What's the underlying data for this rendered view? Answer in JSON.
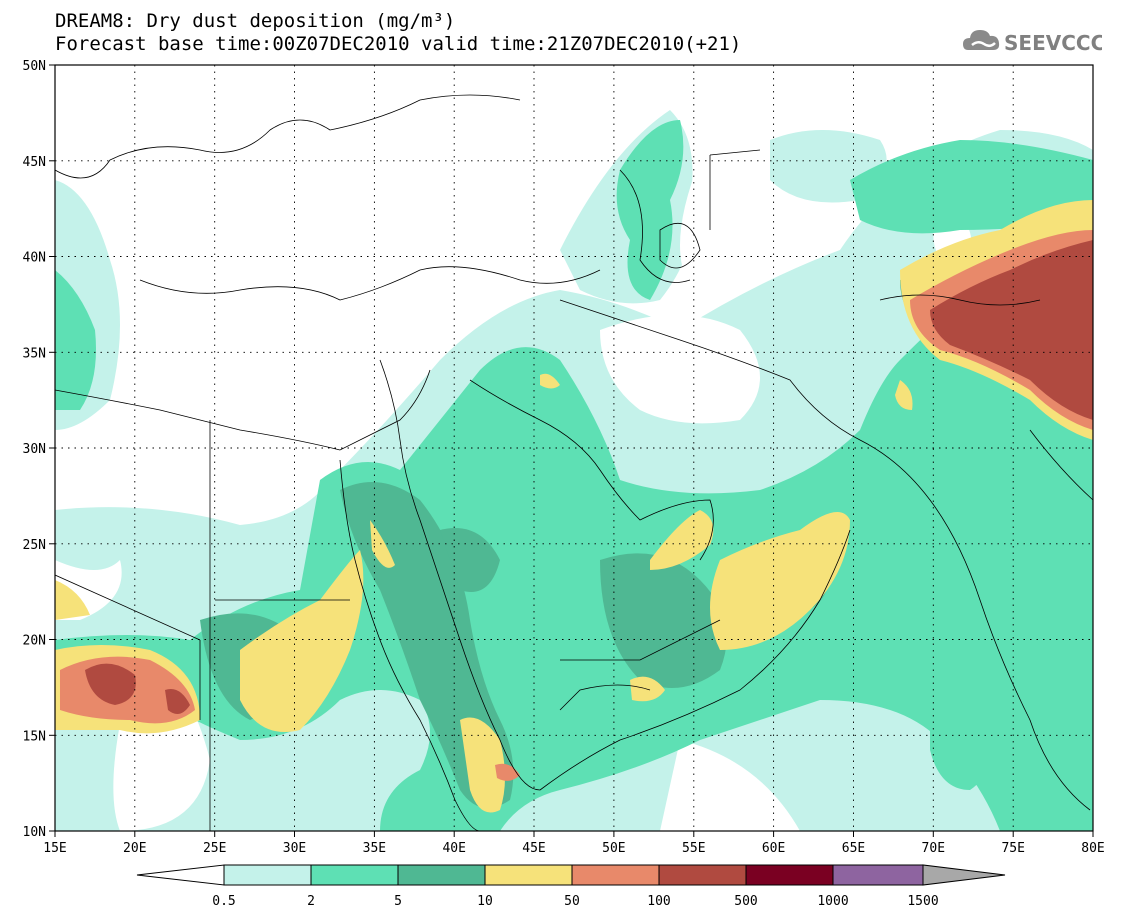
{
  "title": {
    "line1": "DREAM8: Dry dust deposition (mg/m³)",
    "line2": "Forecast base time:00Z07DEC2010 valid time:21Z07DEC2010(+21)"
  },
  "logo": {
    "text": "SEEVCCC",
    "icon": "cloud-logo-icon"
  },
  "map": {
    "lon_range": [
      15,
      80
    ],
    "lat_range": [
      10,
      50
    ],
    "lon_labels": [
      "15E",
      "20E",
      "25E",
      "30E",
      "35E",
      "40E",
      "45E",
      "50E",
      "55E",
      "60E",
      "65E",
      "70E",
      "75E",
      "80E"
    ],
    "lat_labels": [
      "50N",
      "45N",
      "40N",
      "35N",
      "30N",
      "25N",
      "20N",
      "15N",
      "10N"
    ],
    "grid": "dotted"
  },
  "colorbar": {
    "labels": [
      "0.5",
      "2",
      "5",
      "10",
      "50",
      "100",
      "500",
      "1000",
      "1500"
    ],
    "colors": [
      "#c4f2ea",
      "#5ee0b4",
      "#4fb893",
      "#f6e27a",
      "#e8896a",
      "#b04a40",
      "#7a0022",
      "#8e64a0"
    ],
    "under_color": "#ffffff",
    "over_color": "#a8a8a8"
  }
}
